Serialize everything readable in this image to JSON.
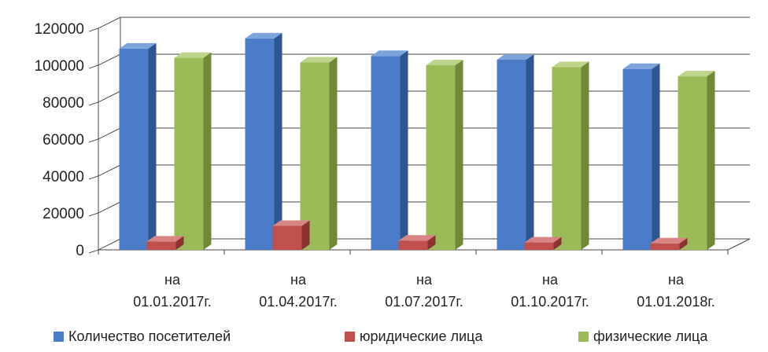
{
  "chart_data": {
    "type": "bar",
    "categories": [
      [
        "на",
        "01.01.2017г."
      ],
      [
        "на",
        "01.04.2017г."
      ],
      [
        "на",
        "01.07.2017г."
      ],
      [
        "на",
        "01.10.2017г."
      ],
      [
        "на",
        "01.01.2018г."
      ]
    ],
    "series": [
      {
        "name": "Количество посетителей",
        "values": [
          109000,
          114500,
          105000,
          103000,
          98000
        ],
        "color": "#4a7cc7",
        "side": "#2d5591",
        "top": "#7da3dc"
      },
      {
        "name": "юридические лица",
        "values": [
          4500,
          13000,
          5000,
          4000,
          3500
        ],
        "color": "#c0504d",
        "side": "#8c3230",
        "top": "#d98583"
      },
      {
        "name": "физические лица",
        "values": [
          104000,
          101500,
          100000,
          99000,
          94000
        ],
        "color": "#9bbb59",
        "side": "#6e8a37",
        "top": "#bcd58a"
      }
    ],
    "ylim": [
      0,
      120000
    ],
    "yticks": [
      "0",
      "20000",
      "40000",
      "60000",
      "80000",
      "100000",
      "120000"
    ],
    "grid": true,
    "legend_position": "bottom",
    "three_d": true
  }
}
